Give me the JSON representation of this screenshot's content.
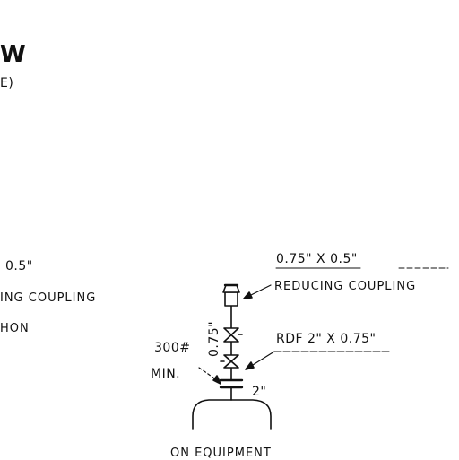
{
  "left_fragment": {
    "title": "W",
    "subtitle": "E)",
    "dim": "0.5\"",
    "coupling": "ING COUPLING",
    "tion": "HON"
  },
  "right_detail": {
    "top_dim": "0.75\" X 0.5\"",
    "reducing_coupling": "REDUCING COUPLING",
    "rdf_dim": "RDF 2\" X 0.75\"",
    "rating": "300#",
    "min": "MIN.",
    "pipe_dim": "0.75\"",
    "nozzle_dim": "2\"",
    "equipment": "ON EQUIPMENT"
  }
}
